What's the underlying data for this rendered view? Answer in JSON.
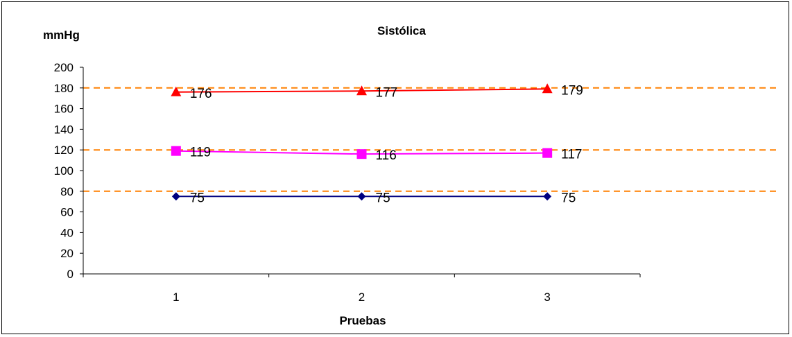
{
  "chart_data": {
    "type": "line",
    "title": "Sistólica",
    "ylabel": "mmHg",
    "xlabel": "Pruebas",
    "categories": [
      "1",
      "2",
      "3"
    ],
    "ylim": [
      0,
      200
    ],
    "ytick_step": 20,
    "yticks": [
      "0",
      "20",
      "40",
      "60",
      "80",
      "100",
      "120",
      "140",
      "160",
      "180",
      "200"
    ],
    "reference_lines": [
      {
        "value": 80,
        "color": "#FF8000",
        "style": "dashed"
      },
      {
        "value": 120,
        "color": "#FF8000",
        "style": "dashed"
      },
      {
        "value": 180,
        "color": "#FF8000",
        "style": "dashed"
      }
    ],
    "series": [
      {
        "values": [
          75,
          75,
          75
        ],
        "labels": [
          "75",
          "75",
          "75"
        ],
        "color": "#000080",
        "marker": "diamond"
      },
      {
        "values": [
          119,
          116,
          117
        ],
        "labels": [
          "119",
          "116",
          "117"
        ],
        "color": "#FF00FF",
        "marker": "square"
      },
      {
        "values": [
          176,
          177,
          179
        ],
        "labels": [
          "176",
          "177",
          "179"
        ],
        "color": "#FF0000",
        "marker": "triangle"
      }
    ],
    "grid": false,
    "legend": "none"
  }
}
